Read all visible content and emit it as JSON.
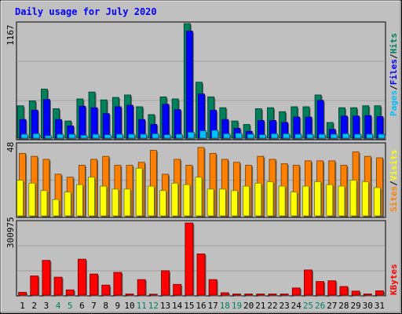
{
  "title": "Daily usage for July 2020",
  "colors": {
    "background": "#C0C0C0",
    "plot_bg": "#C0C0C0",
    "title": "#0000FF",
    "hits": "#00805C",
    "files": "#0000FF",
    "pages": "#00C0FF",
    "visits": "#FFFF00",
    "sites": "#FF8000",
    "kbytes": "#FF0000",
    "weekend_label": "#00805C",
    "label": "#000000"
  },
  "days": [
    1,
    2,
    3,
    4,
    5,
    6,
    7,
    8,
    9,
    10,
    11,
    12,
    13,
    14,
    15,
    16,
    17,
    18,
    19,
    20,
    21,
    22,
    23,
    24,
    25,
    26,
    27,
    28,
    29,
    30,
    31
  ],
  "weekend_days": [
    4,
    5,
    11,
    12,
    18,
    19,
    25,
    26
  ],
  "panels": {
    "top": {
      "max_label": "1167",
      "legend": [
        "Pages",
        "Files",
        "Hits"
      ],
      "separators": [
        "/",
        "/"
      ]
    },
    "middle": {
      "max_label": "48",
      "legend": [
        "Sites",
        "Visits"
      ],
      "separator": "/"
    },
    "bottom": {
      "max_label": "300975",
      "legend": [
        "KBytes"
      ]
    }
  },
  "chart_data": [
    {
      "type": "bar",
      "categories": [
        "1",
        "2",
        "3",
        "4",
        "5",
        "6",
        "7",
        "8",
        "9",
        "10",
        "11",
        "12",
        "13",
        "14",
        "15",
        "16",
        "17",
        "18",
        "19",
        "20",
        "21",
        "22",
        "23",
        "24",
        "25",
        "26",
        "27",
        "28",
        "29",
        "30",
        "31"
      ],
      "ylim": [
        0,
        1167
      ],
      "series": [
        {
          "name": "Hits",
          "values": [
            330,
            380,
            500,
            300,
            175,
            400,
            470,
            390,
            415,
            440,
            320,
            240,
            420,
            400,
            1167,
            570,
            420,
            310,
            175,
            140,
            300,
            310,
            270,
            320,
            320,
            440,
            160,
            310,
            310,
            330,
            330
          ]
        },
        {
          "name": "Files",
          "values": [
            190,
            285,
            395,
            190,
            125,
            325,
            310,
            250,
            320,
            335,
            190,
            140,
            345,
            290,
            1090,
            450,
            285,
            190,
            100,
            70,
            180,
            180,
            160,
            215,
            215,
            385,
            90,
            225,
            225,
            230,
            220
          ]
        },
        {
          "name": "Pages",
          "values": [
            40,
            45,
            25,
            40,
            40,
            30,
            40,
            35,
            40,
            40,
            40,
            45,
            35,
            40,
            60,
            75,
            80,
            45,
            50,
            40,
            35,
            45,
            45,
            40,
            40,
            40,
            40,
            45,
            40,
            40,
            40
          ]
        }
      ]
    },
    {
      "type": "bar",
      "categories": [
        "1",
        "2",
        "3",
        "4",
        "5",
        "6",
        "7",
        "8",
        "9",
        "10",
        "11",
        "12",
        "13",
        "14",
        "15",
        "16",
        "17",
        "18",
        "19",
        "20",
        "21",
        "22",
        "23",
        "24",
        "25",
        "26",
        "27",
        "28",
        "29",
        "30",
        "31"
      ],
      "ylim": [
        0,
        48
      ],
      "series": [
        {
          "name": "Sites",
          "values": [
            42,
            40,
            38,
            28,
            26,
            34,
            38,
            40,
            34,
            34,
            36,
            44,
            28,
            38,
            34,
            46,
            42,
            38,
            36,
            34,
            40,
            38,
            35,
            34,
            37,
            37,
            37,
            34,
            43,
            40,
            39
          ]
        },
        {
          "name": "Visits",
          "values": [
            24,
            22,
            17,
            11,
            16,
            21,
            26,
            20,
            18,
            18,
            32,
            20,
            17,
            22,
            21,
            26,
            18,
            18,
            17,
            20,
            22,
            23,
            20,
            16,
            20,
            23,
            21,
            20,
            24,
            23,
            19
          ]
        }
      ]
    },
    {
      "type": "bar",
      "categories": [
        "1",
        "2",
        "3",
        "4",
        "5",
        "6",
        "7",
        "8",
        "9",
        "10",
        "11",
        "12",
        "13",
        "14",
        "15",
        "16",
        "17",
        "18",
        "19",
        "20",
        "21",
        "22",
        "23",
        "24",
        "25",
        "26",
        "27",
        "28",
        "29",
        "30",
        "31"
      ],
      "ylim": [
        0,
        300975
      ],
      "series": [
        {
          "name": "KBytes",
          "values": [
            12000,
            80000,
            145000,
            75000,
            22000,
            150000,
            88000,
            42000,
            95000,
            5000,
            65000,
            4000,
            102000,
            45000,
            300975,
            172000,
            65000,
            10000,
            5000,
            5000,
            5000,
            5000,
            5000,
            30000,
            105000,
            57000,
            60000,
            36000,
            17000,
            5000,
            18000
          ]
        }
      ]
    }
  ]
}
